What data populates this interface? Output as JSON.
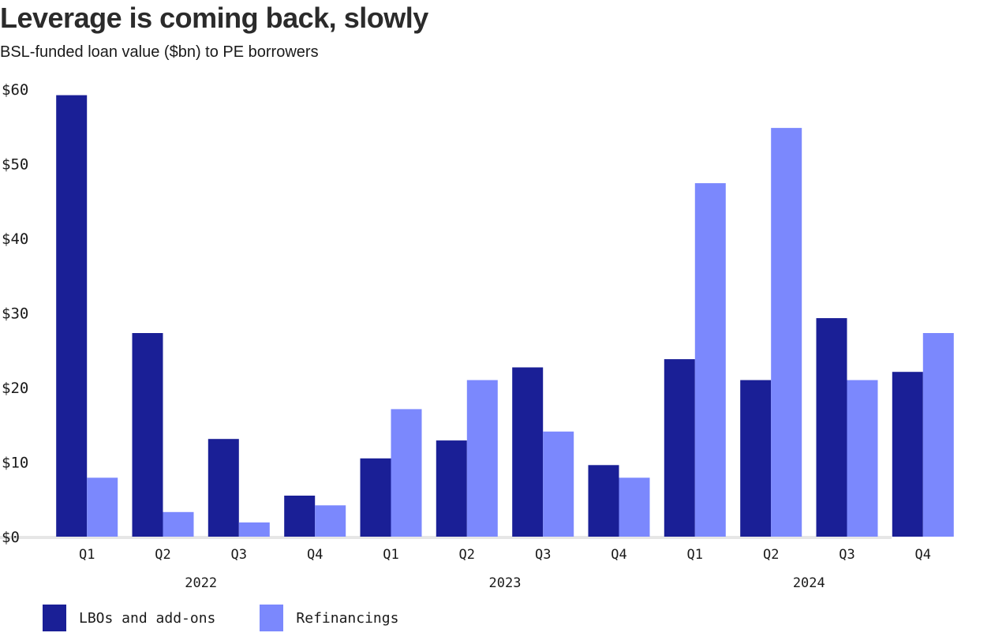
{
  "title": "Leverage is coming back, slowly",
  "subtitle": "BSL-funded loan value ($bn) to PE borrowers",
  "colors": {
    "lbo": "#1a1f96",
    "refi": "#7b88fd",
    "baseline": "#e6e6e6",
    "text": "#1a1a1a"
  },
  "chart_data": {
    "type": "bar",
    "title": "Leverage is coming back, slowly",
    "subtitle": "BSL-funded loan value ($bn) to PE borrowers",
    "categories": [
      "Q1",
      "Q2",
      "Q3",
      "Q4",
      "Q1",
      "Q2",
      "Q3",
      "Q4",
      "Q1",
      "Q2",
      "Q3",
      "Q4"
    ],
    "groups": [
      {
        "label": "2022",
        "quarters": 4
      },
      {
        "label": "2023",
        "quarters": 4
      },
      {
        "label": "2024",
        "quarters": 4
      }
    ],
    "series": [
      {
        "name": "LBOs and add-ons",
        "values": [
          59.2,
          27.3,
          13.1,
          5.5,
          10.5,
          12.9,
          22.7,
          9.6,
          23.8,
          21.0,
          29.3,
          22.1
        ]
      },
      {
        "name": "Refinancings",
        "values": [
          7.9,
          3.3,
          1.9,
          4.2,
          17.1,
          21.0,
          14.1,
          7.9,
          47.4,
          54.8,
          21.0,
          27.3
        ]
      }
    ],
    "ylim": [
      0,
      60
    ],
    "yticks": [
      0,
      10,
      20,
      30,
      40,
      50,
      60
    ],
    "ytick_labels": [
      "$0",
      "$10",
      "$20",
      "$30",
      "$40",
      "$50",
      "$60"
    ],
    "grid": false,
    "legend_position": "bottom-left"
  }
}
